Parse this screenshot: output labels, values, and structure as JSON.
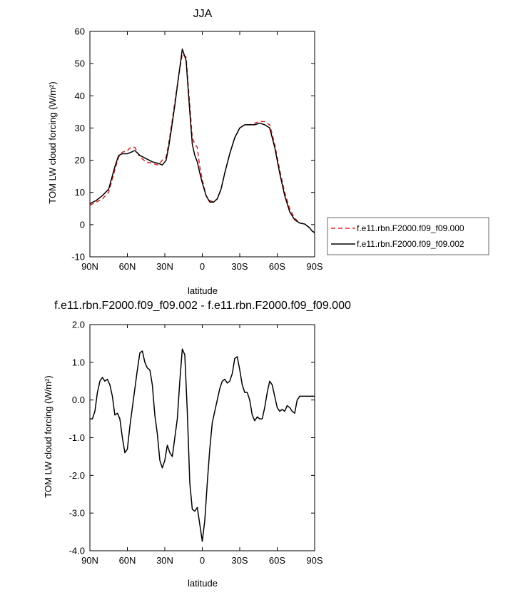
{
  "chart_data": [
    {
      "type": "line",
      "title": "JJA",
      "xlabel": "latitude",
      "ylabel": "TOM LW cloud forcing (W/m²)",
      "xlim": [
        90,
        -90
      ],
      "ylim": [
        -10,
        60
      ],
      "x_ticks": [
        90,
        60,
        30,
        0,
        -30,
        -60,
        -90
      ],
      "x_tick_labels": [
        "90N",
        "60N",
        "30N",
        "0",
        "30S",
        "60S",
        "90S"
      ],
      "y_ticks": [
        -10,
        0,
        10,
        20,
        30,
        40,
        50,
        60
      ],
      "y_tick_labels": [
        "-10",
        "0",
        "10",
        "20",
        "30",
        "40",
        "50",
        "60"
      ],
      "legend": "outside-right",
      "grid": false,
      "series": [
        {
          "name": "f.e11.rbn.F2000.f09_f09.000",
          "color": "#dd2222",
          "dash": "dashed",
          "x": [
            90,
            85,
            80,
            75,
            70,
            67,
            64,
            60,
            57,
            54,
            50,
            45,
            40,
            35,
            32,
            29,
            27,
            25,
            22,
            19,
            16,
            13,
            10,
            8,
            6,
            4,
            2,
            0,
            -3,
            -6,
            -9,
            -12,
            -15,
            -18,
            -22,
            -26,
            -30,
            -34,
            -38,
            -42,
            -46,
            -50,
            -54,
            -58,
            -62,
            -66,
            -70,
            -74,
            -78,
            -82,
            -86,
            -88,
            -90
          ],
          "y": [
            6,
            7,
            8,
            10,
            17,
            21,
            22.5,
            23,
            24,
            24,
            21,
            19.5,
            19,
            18.5,
            20,
            21,
            25,
            30,
            38,
            46,
            53,
            52,
            37,
            27,
            25,
            24,
            18,
            14,
            9,
            7.5,
            7,
            8,
            11,
            16,
            22,
            27,
            30,
            31,
            31,
            31.5,
            32,
            32,
            31,
            25,
            17,
            10,
            5,
            2,
            0.5,
            0.2,
            -1,
            -2,
            -2.5
          ]
        },
        {
          "name": "f.e11.rbn.F2000.f09_f09.002",
          "color": "#000000",
          "dash": "solid",
          "x": [
            90,
            85,
            80,
            75,
            70,
            67,
            64,
            60,
            57,
            54,
            50,
            45,
            40,
            35,
            32,
            29,
            27,
            25,
            22,
            19,
            16,
            13,
            10,
            8,
            6,
            4,
            2,
            0,
            -3,
            -6,
            -9,
            -12,
            -15,
            -18,
            -22,
            -26,
            -30,
            -34,
            -38,
            -42,
            -46,
            -50,
            -54,
            -58,
            -62,
            -66,
            -70,
            -74,
            -78,
            -82,
            -86,
            -88,
            -90
          ],
          "y": [
            6.5,
            7.5,
            9,
            11,
            18,
            21.5,
            22,
            22,
            22.5,
            23,
            21.5,
            20.5,
            19.5,
            19,
            18.5,
            20,
            24,
            29,
            37,
            46,
            54.5,
            51,
            35,
            25,
            21.5,
            19.5,
            16,
            13,
            9,
            7,
            7,
            8,
            11,
            16,
            22,
            27,
            30,
            31,
            31,
            31,
            31.5,
            31,
            30,
            24,
            16,
            9,
            4,
            1.5,
            0.5,
            0.2,
            -1,
            -2,
            -2.5
          ]
        }
      ]
    },
    {
      "type": "line",
      "title": "f.e11.rbn.F2000.f09_f09.002 - f.e11.rbn.F2000.f09_f09.000",
      "xlabel": "latitude",
      "ylabel": "TOM LW cloud forcing (W/m²)",
      "xlim": [
        90,
        -90
      ],
      "ylim": [
        -4.0,
        2.0
      ],
      "x_ticks": [
        90,
        60,
        30,
        0,
        -30,
        -60,
        -90
      ],
      "x_tick_labels": [
        "90N",
        "60N",
        "30N",
        "0",
        "30S",
        "60S",
        "90S"
      ],
      "y_ticks": [
        -4.0,
        -3.0,
        -2.0,
        -1.0,
        0.0,
        1.0,
        2.0
      ],
      "y_tick_labels": [
        "-4.0",
        "-3.0",
        "-2.0",
        "-1.0",
        "0.0",
        "1.0",
        "2.0"
      ],
      "grid": false,
      "series": [
        {
          "color": "#000000",
          "dash": "solid",
          "x": [
            90,
            88,
            86,
            84,
            82,
            80,
            78,
            76,
            74,
            72,
            70,
            68,
            66,
            64,
            62,
            60,
            58,
            56,
            54,
            52,
            50,
            48,
            46,
            44,
            42,
            40,
            38,
            36,
            34,
            32,
            30,
            28,
            26,
            24,
            22,
            20,
            18,
            16,
            14,
            12,
            10,
            8,
            6,
            4,
            2,
            0,
            -2,
            -4,
            -6,
            -8,
            -10,
            -12,
            -14,
            -16,
            -18,
            -20,
            -22,
            -24,
            -26,
            -28,
            -30,
            -32,
            -34,
            -36,
            -38,
            -40,
            -42,
            -44,
            -46,
            -48,
            -50,
            -52,
            -54,
            -56,
            -58,
            -60,
            -62,
            -64,
            -66,
            -68,
            -70,
            -72,
            -74,
            -76,
            -78,
            -80,
            -82,
            -84,
            -86,
            -88,
            -90
          ],
          "y": [
            -0.5,
            -0.5,
            -0.3,
            0.2,
            0.5,
            0.6,
            0.5,
            0.55,
            0.4,
            0.1,
            -0.4,
            -0.35,
            -0.5,
            -1.0,
            -1.4,
            -1.3,
            -0.7,
            -0.2,
            0.3,
            0.8,
            1.25,
            1.3,
            1.0,
            0.85,
            0.8,
            0.4,
            -0.4,
            -0.9,
            -1.6,
            -1.8,
            -1.6,
            -1.2,
            -1.4,
            -1.5,
            -1.0,
            -0.5,
            0.5,
            1.35,
            1.2,
            -0.3,
            -2.2,
            -2.9,
            -2.95,
            -2.85,
            -3.3,
            -3.75,
            -3.2,
            -2.2,
            -1.3,
            -0.6,
            -0.3,
            0.0,
            0.3,
            0.5,
            0.55,
            0.45,
            0.5,
            0.7,
            1.1,
            1.15,
            0.8,
            0.4,
            0.2,
            0.2,
            0.0,
            -0.4,
            -0.55,
            -0.45,
            -0.5,
            -0.5,
            -0.2,
            0.2,
            0.5,
            0.4,
            0.1,
            -0.2,
            -0.3,
            -0.25,
            -0.3,
            -0.15,
            -0.2,
            -0.3,
            -0.35,
            0.0,
            0.1,
            0.1,
            0.1,
            0.1,
            0.1,
            0.1,
            0.1
          ]
        }
      ]
    }
  ]
}
